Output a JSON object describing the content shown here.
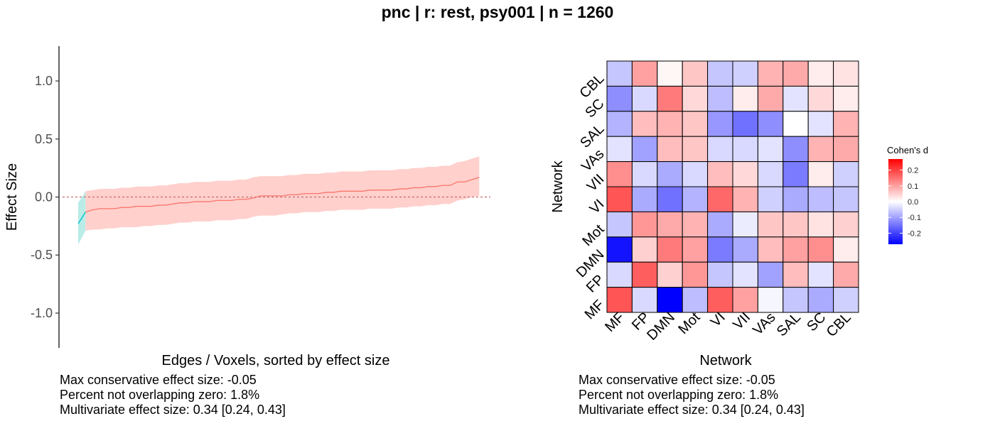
{
  "title": "pnc | r: rest, psy001 | n = 1260",
  "chart_data": [
    {
      "type": "line",
      "title": "",
      "xlabel": "Edges / Voxels, sorted by effect size",
      "ylabel": "Effect Size",
      "ylim": [
        -1.3,
        1.3
      ],
      "yticks": [
        1.0,
        0.5,
        0.0,
        -0.5,
        -1.0
      ],
      "ytick_labels": [
        "1.0",
        "0.5",
        "0.0",
        "-0.5",
        "-1.0"
      ],
      "x_count": 55,
      "reference_line": 0,
      "grid": false,
      "series": [
        {
          "role": "estimate-overlapping-zero",
          "color": "#f8766d",
          "band_color": "#ffd0cc",
          "x_start": 1,
          "values": [
            -0.13,
            -0.11,
            -0.1,
            -0.1,
            -0.1,
            -0.09,
            -0.09,
            -0.08,
            -0.08,
            -0.08,
            -0.07,
            -0.07,
            -0.06,
            -0.05,
            -0.05,
            -0.04,
            -0.04,
            -0.04,
            -0.03,
            -0.03,
            -0.03,
            -0.02,
            -0.02,
            -0.01,
            0.01,
            0.01,
            0.01,
            0.01,
            0.02,
            0.02,
            0.03,
            0.03,
            0.03,
            0.04,
            0.04,
            0.05,
            0.05,
            0.05,
            0.05,
            0.06,
            0.06,
            0.06,
            0.06,
            0.07,
            0.07,
            0.08,
            0.08,
            0.09,
            0.09,
            0.1,
            0.1,
            0.13,
            0.13,
            0.15,
            0.17
          ],
          "lower": [
            -0.29,
            -0.28,
            -0.28,
            -0.27,
            -0.27,
            -0.26,
            -0.26,
            -0.26,
            -0.25,
            -0.25,
            -0.24,
            -0.24,
            -0.23,
            -0.22,
            -0.22,
            -0.21,
            -0.21,
            -0.21,
            -0.2,
            -0.2,
            -0.2,
            -0.19,
            -0.19,
            -0.17,
            -0.16,
            -0.16,
            -0.16,
            -0.15,
            -0.14,
            -0.14,
            -0.13,
            -0.13,
            -0.13,
            -0.12,
            -0.12,
            -0.11,
            -0.11,
            -0.11,
            -0.11,
            -0.1,
            -0.1,
            -0.1,
            -0.1,
            -0.09,
            -0.09,
            -0.08,
            -0.08,
            -0.07,
            -0.07,
            -0.06,
            -0.06,
            -0.03,
            -0.02,
            0.0,
            0.01
          ],
          "upper": [
            0.05,
            0.06,
            0.07,
            0.07,
            0.07,
            0.08,
            0.08,
            0.09,
            0.09,
            0.09,
            0.1,
            0.1,
            0.11,
            0.12,
            0.12,
            0.13,
            0.13,
            0.13,
            0.14,
            0.14,
            0.14,
            0.15,
            0.15,
            0.17,
            0.18,
            0.18,
            0.18,
            0.18,
            0.19,
            0.19,
            0.2,
            0.2,
            0.2,
            0.21,
            0.21,
            0.22,
            0.22,
            0.22,
            0.22,
            0.23,
            0.23,
            0.23,
            0.23,
            0.24,
            0.24,
            0.25,
            0.25,
            0.26,
            0.26,
            0.27,
            0.27,
            0.3,
            0.31,
            0.33,
            0.35
          ]
        },
        {
          "role": "estimate-not-overlapping-zero",
          "color": "#00bfc4",
          "band_color": "#b9ece7",
          "x_start": 0,
          "values": [
            -0.23,
            -0.13
          ],
          "lower": [
            -0.41,
            -0.29
          ],
          "upper": [
            -0.05,
            0.05
          ]
        }
      ]
    },
    {
      "type": "heatmap",
      "title": "",
      "xlabel": "Network",
      "ylabel": "Network",
      "x_categories": [
        "MF",
        "FP",
        "DMN",
        "Mot",
        "VI",
        "VII",
        "VAs",
        "SAL",
        "SC",
        "CBL"
      ],
      "y_categories": [
        "CBL",
        "SC",
        "SAL",
        "VAs",
        "VII",
        "VI",
        "Mot",
        "DMN",
        "FP",
        "MF"
      ],
      "values": [
        [
          -0.06,
          0.1,
          0.01,
          0.06,
          -0.06,
          -0.05,
          0.08,
          0.09,
          0.02,
          0.03
        ],
        [
          -0.12,
          -0.04,
          0.14,
          0.04,
          -0.07,
          0.02,
          0.09,
          -0.03,
          0.04,
          0.02
        ],
        [
          -0.08,
          0.07,
          0.08,
          0.06,
          -0.11,
          -0.15,
          -0.12,
          0.0,
          -0.03,
          0.08
        ],
        [
          -0.03,
          -0.1,
          0.07,
          0.06,
          -0.04,
          -0.04,
          -0.03,
          -0.12,
          0.08,
          0.09
        ],
        [
          0.12,
          -0.04,
          -0.09,
          -0.04,
          0.07,
          0.04,
          -0.04,
          -0.14,
          0.02,
          -0.05
        ],
        [
          0.18,
          -0.09,
          -0.15,
          -0.08,
          0.16,
          0.08,
          -0.05,
          -0.09,
          -0.07,
          -0.06
        ],
        [
          -0.06,
          0.11,
          0.09,
          0.08,
          -0.09,
          -0.02,
          0.06,
          0.06,
          0.03,
          0.05
        ],
        [
          -0.25,
          0.05,
          0.14,
          0.1,
          -0.14,
          -0.09,
          0.07,
          0.1,
          0.12,
          0.02
        ],
        [
          -0.04,
          0.17,
          0.05,
          0.11,
          -0.06,
          -0.03,
          -0.1,
          0.07,
          -0.03,
          0.09
        ],
        [
          0.18,
          -0.04,
          -0.27,
          -0.07,
          0.17,
          0.1,
          -0.01,
          -0.06,
          -0.09,
          -0.05
        ]
      ],
      "legend": {
        "title": "Cohen's d",
        "ticks": [
          0.2,
          0.1,
          0.0,
          -0.1,
          -0.2
        ],
        "tick_labels": [
          "0.2",
          "0.1",
          "0.0",
          "-0.1",
          "-0.2"
        ],
        "range": [
          -0.27,
          0.27
        ],
        "placement": "right",
        "low_color": "#0000ff",
        "mid_color": "#ffffff",
        "high_color": "#ff0000"
      }
    }
  ],
  "footnotes": {
    "left": [
      "Max conservative effect size: -0.05",
      "Percent not overlapping zero: 1.8%",
      "Multivariate effect size: 0.34 [0.24, 0.43]"
    ],
    "right": [
      "Max conservative effect size: -0.05",
      "Percent not overlapping zero: 1.8%",
      "Multivariate effect size: 0.34 [0.24, 0.43]"
    ]
  }
}
